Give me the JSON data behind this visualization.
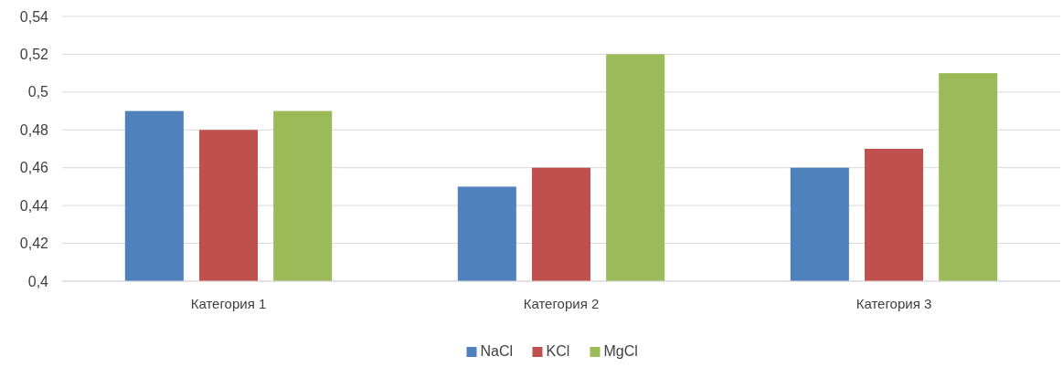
{
  "chart_data": {
    "type": "bar",
    "categories": [
      "Категория 1",
      "Категория 2",
      "Категория 3"
    ],
    "series": [
      {
        "name": "NaCl",
        "color": "#4f81bd",
        "values": [
          0.49,
          0.45,
          0.46
        ]
      },
      {
        "name": "KCl",
        "color": "#c0504d",
        "values": [
          0.48,
          0.46,
          0.47
        ]
      },
      {
        "name": "MgCl",
        "color": "#9bbb59",
        "values": [
          0.49,
          0.52,
          0.51
        ]
      }
    ],
    "ylim": [
      0.4,
      0.54
    ],
    "yticks": [
      {
        "value": 0.4,
        "label": "0,4"
      },
      {
        "value": 0.42,
        "label": "0,42"
      },
      {
        "value": 0.44,
        "label": "0,44"
      },
      {
        "value": 0.46,
        "label": "0,46"
      },
      {
        "value": 0.48,
        "label": "0,48"
      },
      {
        "value": 0.5,
        "label": "0,5"
      },
      {
        "value": 0.52,
        "label": "0,52"
      },
      {
        "value": 0.54,
        "label": "0,54"
      }
    ],
    "grid": "y",
    "legend": "bottom"
  }
}
